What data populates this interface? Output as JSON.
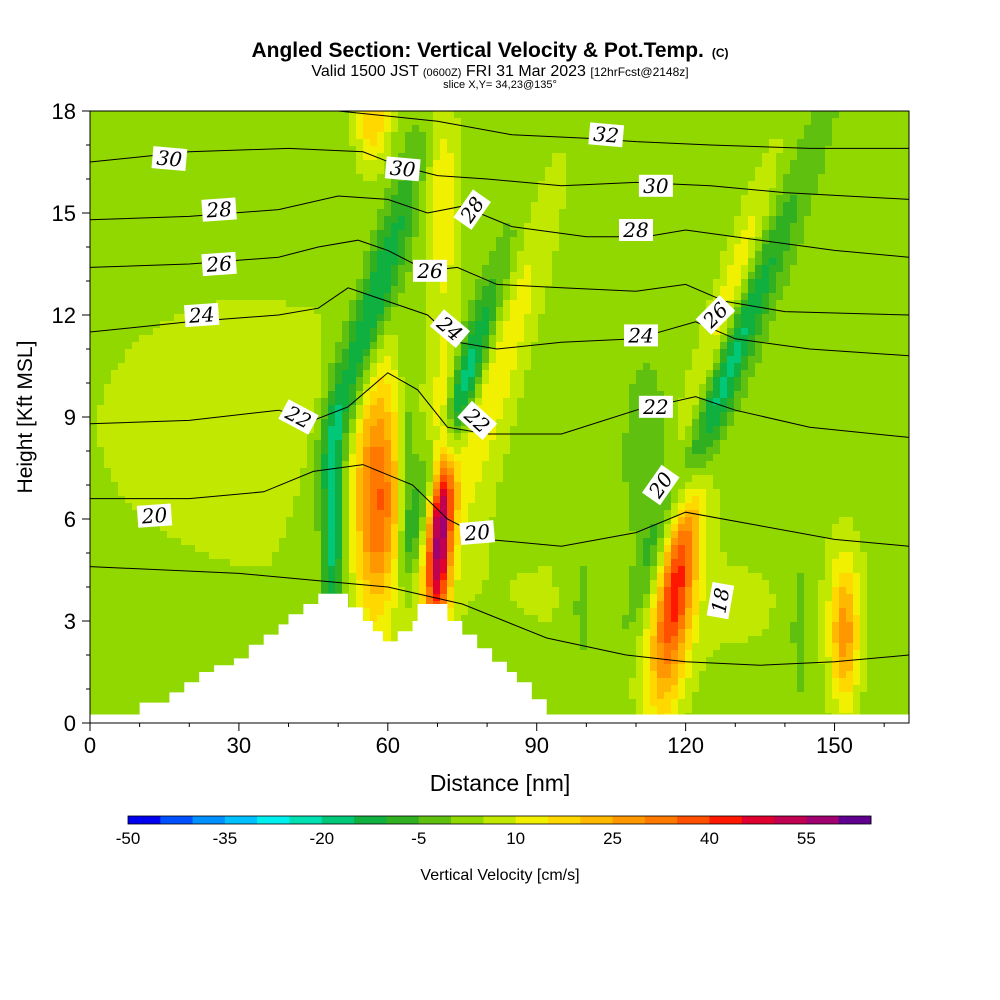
{
  "chart_data": {
    "type": "heatmap",
    "title": "Angled Section: Vertical Velocity & Pot.Temp.",
    "title_mark": "(C)",
    "subtitle": {
      "valid_prefix": "Valid 1500 JST",
      "valid_zulu": "(0600Z)",
      "valid_date": "FRI 31 Mar 2023",
      "forecast": "[12hrFcst@2148z]"
    },
    "slice_label": "slice X,Y= 34,23@135°",
    "xlabel": "Distance [nm]",
    "ylabel": "Height [Kft MSL]",
    "xlim": [
      0,
      165
    ],
    "ylim": [
      0,
      18
    ],
    "x_ticks": [
      "0",
      "30",
      "60",
      "90",
      "120",
      "150"
    ],
    "x_tick_values": [
      0,
      30,
      60,
      90,
      120,
      150
    ],
    "y_ticks": [
      "0",
      "3",
      "6",
      "9",
      "12",
      "15",
      "18"
    ],
    "y_tick_values": [
      0,
      3,
      6,
      9,
      12,
      15,
      18
    ],
    "colorbar": {
      "label": "Vertical Velocity [cm/s]",
      "tick_labels": [
        "-50",
        "-35",
        "-20",
        "-5",
        "10",
        "25",
        "40",
        "55"
      ],
      "tick_values": [
        -50,
        -35,
        -20,
        -5,
        10,
        25,
        40,
        55
      ],
      "levels": [
        -50,
        -45,
        -40,
        -35,
        -30,
        -25,
        -20,
        -15,
        -10,
        -5,
        0,
        5,
        10,
        15,
        20,
        25,
        30,
        35,
        40,
        45,
        50,
        55,
        60
      ],
      "colors": [
        "#0000f0",
        "#0050ff",
        "#0090ff",
        "#00c0ff",
        "#00f0f0",
        "#00e0b0",
        "#00c878",
        "#10b040",
        "#30b020",
        "#60c010",
        "#90d800",
        "#c0e800",
        "#f0f000",
        "#ffd800",
        "#ffb800",
        "#ff9800",
        "#ff7800",
        "#ff5000",
        "#ff1800",
        "#e00030",
        "#c00050",
        "#a00070",
        "#600090"
      ]
    },
    "terrain_steps": [
      [
        10,
        0.6
      ],
      [
        16,
        0.6
      ],
      [
        16,
        0.9
      ],
      [
        19,
        0.9
      ],
      [
        19,
        1.2
      ],
      [
        22,
        1.2
      ],
      [
        22,
        1.5
      ],
      [
        25,
        1.5
      ],
      [
        25,
        1.7
      ],
      [
        29,
        1.7
      ],
      [
        29,
        1.9
      ],
      [
        32,
        1.9
      ],
      [
        32,
        2.3
      ],
      [
        35,
        2.3
      ],
      [
        35,
        2.6
      ],
      [
        38,
        2.6
      ],
      [
        38,
        2.9
      ],
      [
        40,
        2.9
      ],
      [
        40,
        3.2
      ],
      [
        43,
        3.2
      ],
      [
        43,
        3.5
      ],
      [
        46,
        3.5
      ],
      [
        46,
        3.8
      ],
      [
        52,
        3.8
      ],
      [
        52,
        3.4
      ],
      [
        55,
        3.4
      ],
      [
        55,
        3.0
      ],
      [
        57,
        3.0
      ],
      [
        57,
        2.7
      ],
      [
        59,
        2.7
      ],
      [
        59,
        2.4
      ],
      [
        62,
        2.4
      ],
      [
        62,
        2.7
      ],
      [
        65,
        2.7
      ],
      [
        65,
        3.0
      ],
      [
        66,
        3.0
      ],
      [
        66,
        3.5
      ],
      [
        72,
        3.5
      ],
      [
        72,
        3.0
      ],
      [
        75,
        3.0
      ],
      [
        75,
        2.6
      ],
      [
        78,
        2.6
      ],
      [
        78,
        2.2
      ],
      [
        81,
        2.2
      ],
      [
        81,
        1.8
      ],
      [
        84,
        1.8
      ],
      [
        84,
        1.5
      ],
      [
        86,
        1.5
      ],
      [
        86,
        1.2
      ],
      [
        89,
        1.2
      ],
      [
        89,
        0.7
      ],
      [
        92,
        0.7
      ],
      [
        92,
        0
      ]
    ],
    "velocity_features": [
      {
        "x": 33,
        "y": 8.8,
        "sx": 30,
        "sy": 3.5,
        "tilt": 0,
        "amp": 6
      },
      {
        "x": 118,
        "y": 3.5,
        "sx": 45,
        "sy": 2.5,
        "tilt": 0,
        "amp": 4
      },
      {
        "x": 49,
        "y": 5.5,
        "sx": 1.6,
        "sy": 2.5,
        "tilt": 0.1,
        "amp": -22
      },
      {
        "x": 55.5,
        "y": 11.5,
        "sx": 2.6,
        "sy": 3.2,
        "tilt": 2.0,
        "amp": -22
      },
      {
        "x": 58,
        "y": 6.5,
        "sx": 3.2,
        "sy": 2.6,
        "tilt": 0,
        "amp": 30
      },
      {
        "x": 64,
        "y": 7.5,
        "sx": 1.3,
        "sy": 2.5,
        "tilt": 0,
        "amp": -10
      },
      {
        "x": 70.5,
        "y": 5.8,
        "sx": 1.8,
        "sy": 2.5,
        "tilt": 0.3,
        "amp": 50
      },
      {
        "x": 74.5,
        "y": 9.5,
        "sx": 2.5,
        "sy": 3.0,
        "tilt": 2.2,
        "amp": -30
      },
      {
        "x": 71,
        "y": 15.5,
        "sx": 2.5,
        "sy": 2.5,
        "tilt": 0,
        "amp": 12
      },
      {
        "x": 81,
        "y": 10.5,
        "sx": 4.0,
        "sy": 4.0,
        "tilt": 2.0,
        "amp": 14
      },
      {
        "x": 57,
        "y": 17.8,
        "sx": 2.5,
        "sy": 1.0,
        "tilt": 0,
        "amp": 18
      },
      {
        "x": 118,
        "y": 4.0,
        "sx": 2.8,
        "sy": 2.5,
        "tilt": 0.8,
        "amp": 38
      },
      {
        "x": 126,
        "y": 9.5,
        "sx": 2.5,
        "sy": 4.0,
        "tilt": 2.6,
        "amp": -22
      },
      {
        "x": 129,
        "y": 12.5,
        "sx": 2.6,
        "sy": 3.0,
        "tilt": 2.0,
        "amp": 12
      },
      {
        "x": 152,
        "y": 2.6,
        "sx": 2.0,
        "sy": 1.5,
        "tilt": 0,
        "amp": 24
      },
      {
        "x": 143,
        "y": 3.0,
        "sx": 2.0,
        "sy": 2.0,
        "tilt": 0,
        "amp": -6
      },
      {
        "x": 112,
        "y": 7.0,
        "sx": 3.0,
        "sy": 2.0,
        "tilt": 0,
        "amp": -8
      },
      {
        "x": 99,
        "y": 3.5,
        "sx": 2.0,
        "sy": 2.0,
        "tilt": 0,
        "amp": -6
      }
    ],
    "theta_contours": [
      {
        "level": 18,
        "x": [
          0,
          30,
          45,
          60,
          75,
          92,
          108,
          120,
          135,
          150,
          165
        ],
        "y": [
          4.6,
          4.4,
          4.2,
          4.0,
          3.5,
          2.5,
          2.0,
          1.8,
          1.7,
          1.8,
          2.0
        ]
      },
      {
        "level": 20,
        "x": [
          0,
          20,
          35,
          45,
          55,
          65,
          72,
          80,
          95,
          110,
          120,
          135,
          150,
          165
        ],
        "y": [
          6.6,
          6.6,
          6.8,
          7.4,
          7.6,
          7.0,
          6.0,
          5.4,
          5.2,
          5.6,
          6.2,
          5.8,
          5.4,
          5.2
        ]
      },
      {
        "level": 22,
        "x": [
          0,
          20,
          38,
          45,
          52,
          60,
          66,
          72,
          80,
          95,
          110,
          122,
          130,
          145,
          165
        ],
        "y": [
          8.8,
          8.9,
          9.2,
          8.9,
          9.3,
          10.3,
          9.8,
          8.7,
          8.5,
          8.5,
          9.2,
          9.6,
          9.2,
          8.7,
          8.4
        ]
      },
      {
        "level": 24,
        "x": [
          0,
          20,
          38,
          46,
          52,
          60,
          68,
          74,
          82,
          95,
          110,
          122,
          130,
          145,
          165
        ],
        "y": [
          11.5,
          11.8,
          12.0,
          12.2,
          12.8,
          12.4,
          12.0,
          11.2,
          11.0,
          11.2,
          11.3,
          11.8,
          11.3,
          11.0,
          10.8
        ]
      },
      {
        "level": 26,
        "x": [
          0,
          20,
          38,
          46,
          54,
          60,
          68,
          74,
          82,
          95,
          110,
          120,
          128,
          140,
          165
        ],
        "y": [
          13.4,
          13.5,
          13.7,
          14.0,
          14.2,
          13.9,
          13.3,
          13.4,
          12.9,
          12.8,
          12.7,
          12.9,
          12.4,
          12.1,
          12.0
        ]
      },
      {
        "level": 28,
        "x": [
          0,
          20,
          38,
          50,
          60,
          68,
          75,
          85,
          100,
          112,
          120,
          135,
          150,
          165
        ],
        "y": [
          14.8,
          14.9,
          15.1,
          15.5,
          15.4,
          15.0,
          15.2,
          14.6,
          14.3,
          14.3,
          14.5,
          14.2,
          13.9,
          13.7
        ]
      },
      {
        "level": 30,
        "x": [
          0,
          20,
          40,
          55,
          62,
          70,
          80,
          95,
          110,
          125,
          140,
          165
        ],
        "y": [
          16.5,
          16.8,
          16.9,
          16.8,
          16.4,
          16.1,
          16.0,
          15.8,
          15.9,
          15.8,
          15.6,
          15.4
        ]
      },
      {
        "level": 32,
        "x": [
          50,
          70,
          85,
          100,
          110,
          125,
          145,
          165
        ],
        "y": [
          18.0,
          17.7,
          17.3,
          17.2,
          17.1,
          17.0,
          16.9,
          16.9
        ]
      }
    ],
    "contour_labels": [
      {
        "text": "30",
        "x": 16,
        "y": 16.6,
        "angle": 5
      },
      {
        "text": "28",
        "x": 26,
        "y": 15.1,
        "angle": -4
      },
      {
        "text": "26",
        "x": 26,
        "y": 13.5,
        "angle": -4
      },
      {
        "text": "24",
        "x": 22.5,
        "y": 12.0,
        "angle": -4
      },
      {
        "text": "22",
        "x": 42,
        "y": 9.0,
        "angle": 28
      },
      {
        "text": "20",
        "x": 13,
        "y": 6.1,
        "angle": -4
      },
      {
        "text": "30",
        "x": 63,
        "y": 16.3,
        "angle": 5
      },
      {
        "text": "28",
        "x": 77,
        "y": 15.1,
        "angle": -55
      },
      {
        "text": "26",
        "x": 68.5,
        "y": 13.3,
        "angle": 0
      },
      {
        "text": "24",
        "x": 72.5,
        "y": 11.6,
        "angle": 40
      },
      {
        "text": "22",
        "x": 78,
        "y": 8.9,
        "angle": 42
      },
      {
        "text": "20",
        "x": 78,
        "y": 5.6,
        "angle": -5
      },
      {
        "text": "32",
        "x": 104,
        "y": 17.3,
        "angle": 5
      },
      {
        "text": "30",
        "x": 114,
        "y": 15.8,
        "angle": 0
      },
      {
        "text": "28",
        "x": 110,
        "y": 14.5,
        "angle": 0
      },
      {
        "text": "24",
        "x": 111,
        "y": 11.4,
        "angle": 0
      },
      {
        "text": "22",
        "x": 114,
        "y": 9.3,
        "angle": 0
      },
      {
        "text": "20",
        "x": 115,
        "y": 7.0,
        "angle": -55
      },
      {
        "text": "18",
        "x": 127,
        "y": 3.6,
        "angle": -80
      },
      {
        "text": "26",
        "x": 126,
        "y": 12.0,
        "angle": -45
      }
    ]
  }
}
